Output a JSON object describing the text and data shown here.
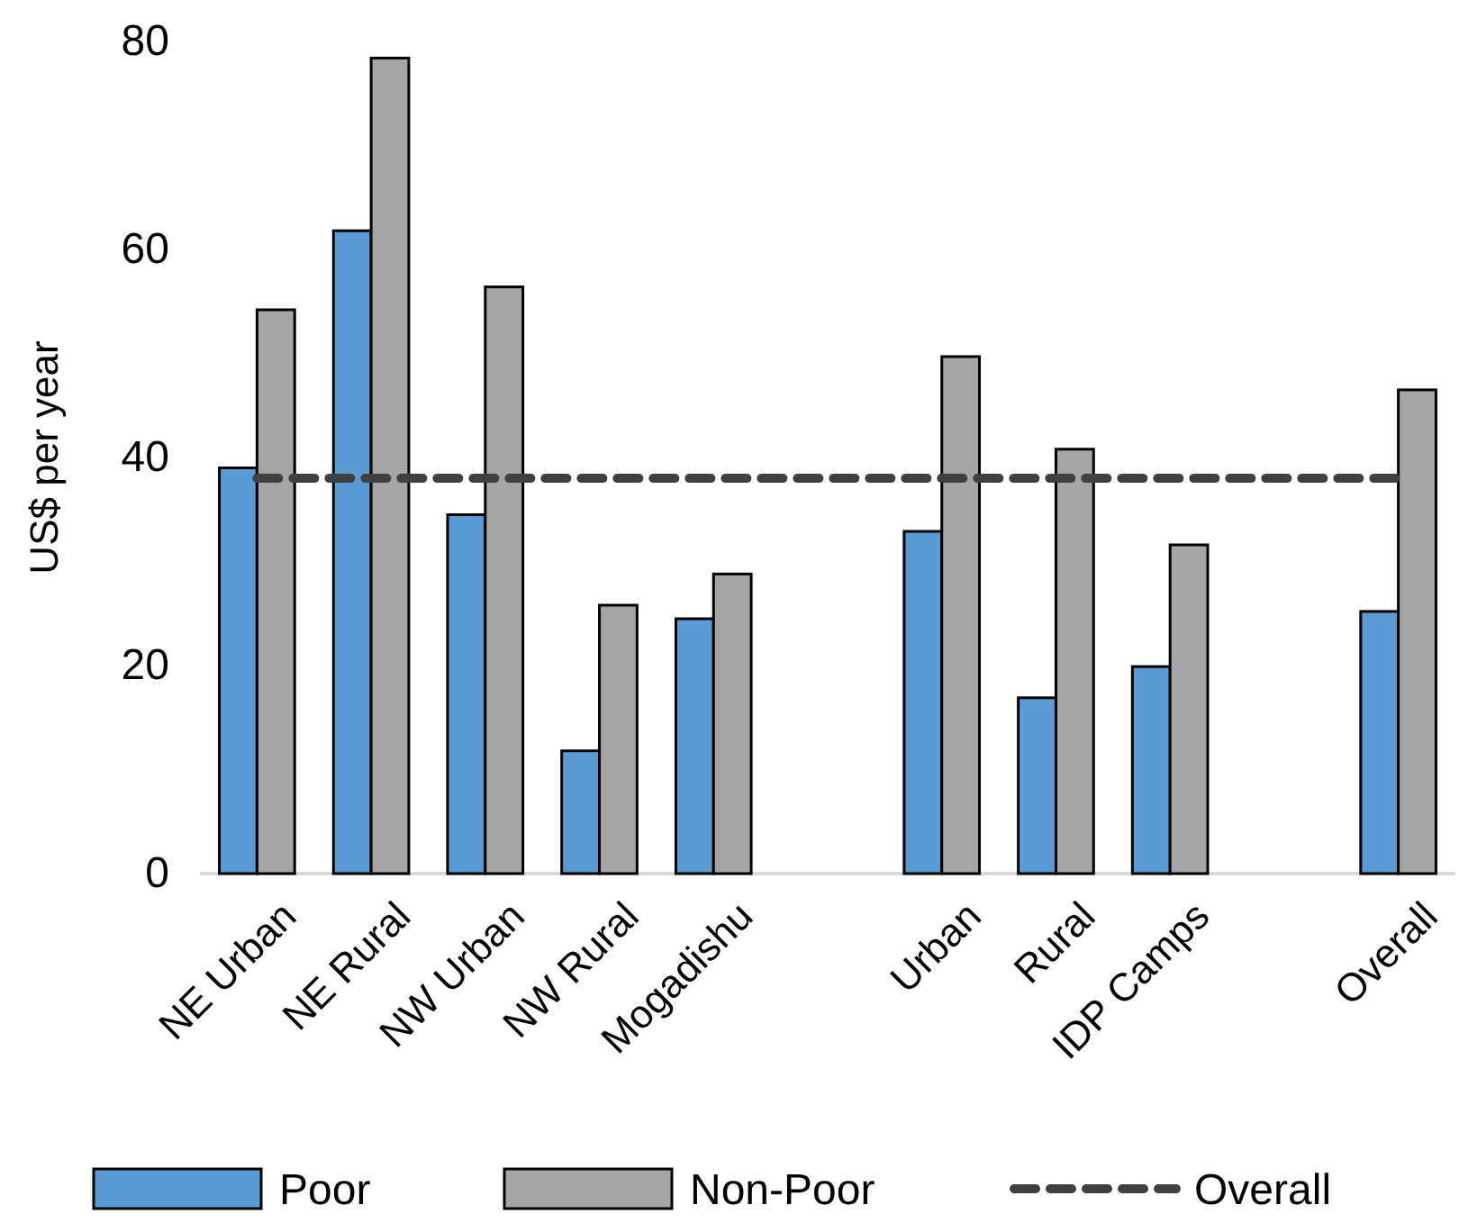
{
  "chart_data": {
    "type": "bar",
    "ylabel": "US$ per year",
    "categories": [
      "NE Urban",
      "NE Rural",
      "NW Urban",
      "NW Rural",
      "Mogadishu",
      null,
      "Urban",
      "Rural",
      "IDP Camps",
      null,
      "Overall"
    ],
    "series": [
      {
        "name": "Poor",
        "color": "#5b9bd5",
        "values": [
          39.0,
          61.8,
          34.5,
          11.8,
          24.5,
          null,
          32.9,
          16.9,
          19.9,
          null,
          25.2
        ]
      },
      {
        "name": "Non-Poor",
        "color": "#a5a5a5",
        "values": [
          54.2,
          78.4,
          56.4,
          25.8,
          28.8,
          null,
          49.7,
          40.8,
          31.6,
          null,
          46.5
        ]
      },
      {
        "name": "Overall",
        "type": "line",
        "color": "#404040",
        "line_style": "dashed",
        "values": [
          38,
          38,
          38,
          38,
          38,
          38,
          38,
          38,
          38,
          38,
          38
        ]
      }
    ],
    "ylim": [
      0,
      80
    ],
    "yticks": [
      0,
      20,
      40,
      60,
      80
    ],
    "grid": false,
    "legend": "bottom"
  }
}
